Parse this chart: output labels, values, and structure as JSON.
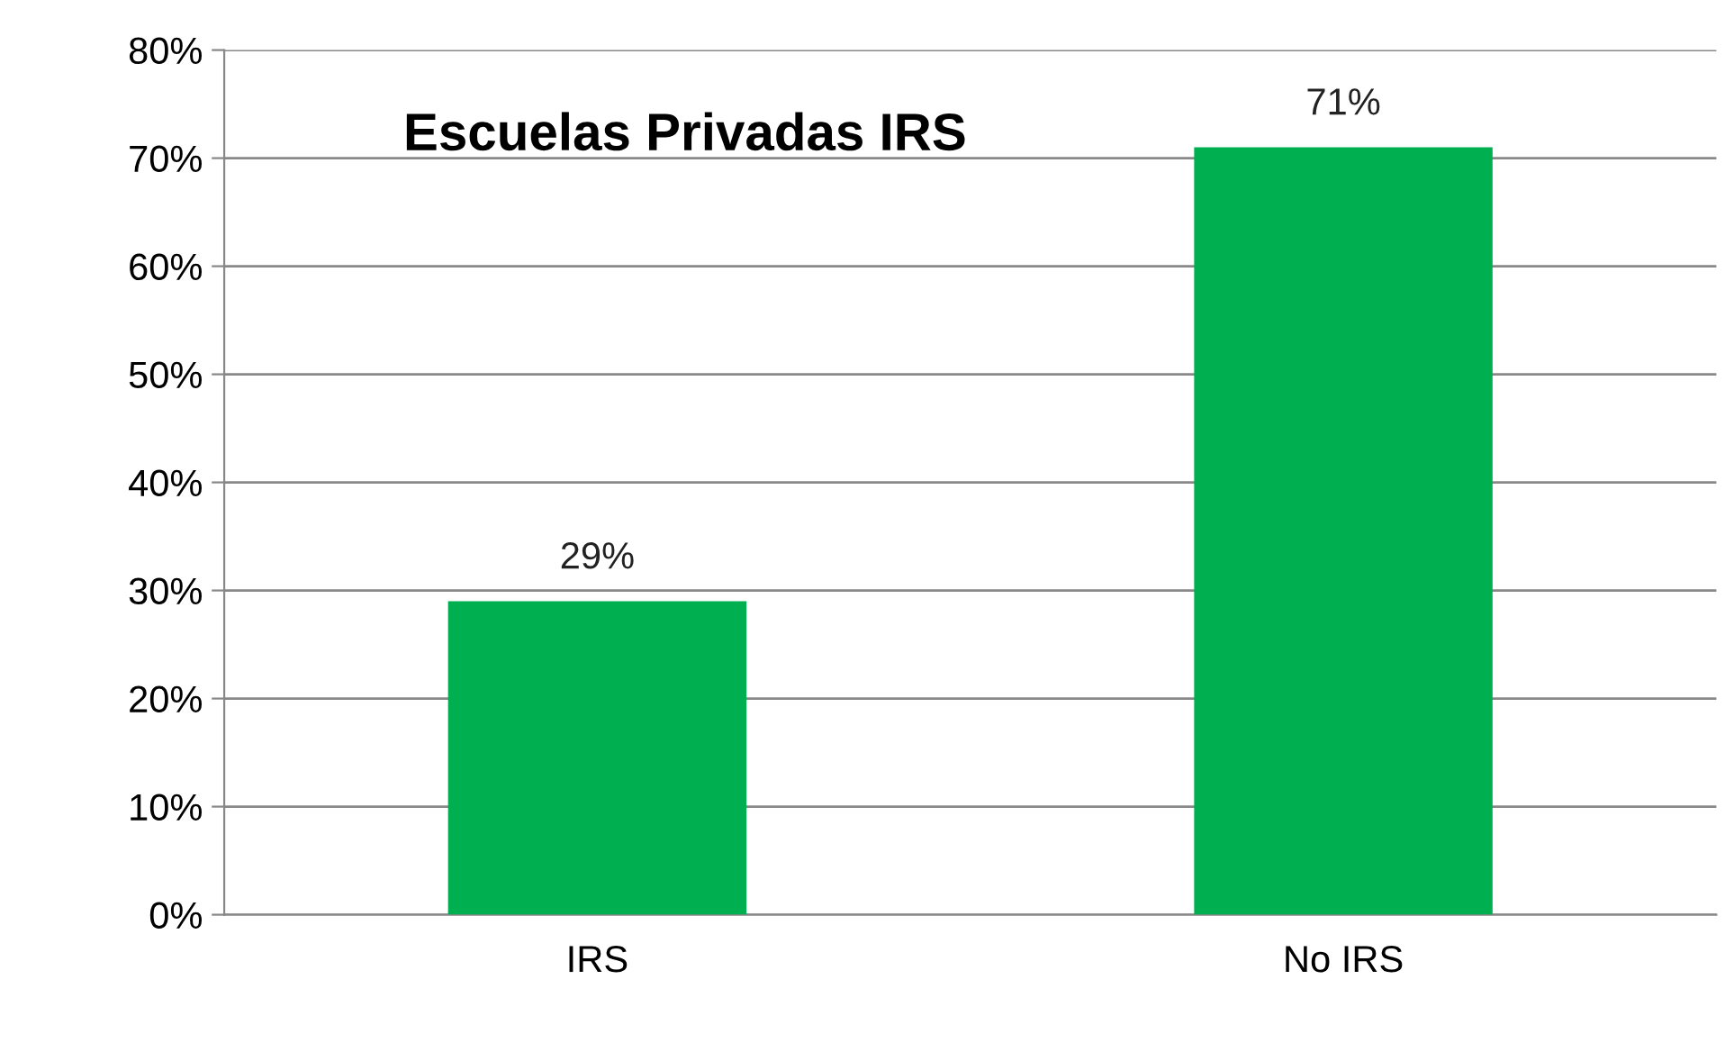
{
  "chart_data": {
    "type": "bar",
    "title": "Escuelas Privadas IRS",
    "categories": [
      "IRS",
      "No IRS"
    ],
    "values": [
      29,
      71
    ],
    "color": "#00b050",
    "ylim": [
      0,
      80
    ],
    "yticks": [
      {
        "value": 0,
        "label": "0%"
      },
      {
        "value": 10,
        "label": "10%"
      },
      {
        "value": 20,
        "label": "20%"
      },
      {
        "value": 30,
        "label": "30%"
      },
      {
        "value": 40,
        "label": "40%"
      },
      {
        "value": 50,
        "label": "50%"
      },
      {
        "value": 60,
        "label": "60%"
      },
      {
        "value": 70,
        "label": "70%"
      },
      {
        "value": 80,
        "label": "80%"
      }
    ],
    "value_labels": [
      "29%",
      "71%"
    ],
    "grid": "y"
  }
}
